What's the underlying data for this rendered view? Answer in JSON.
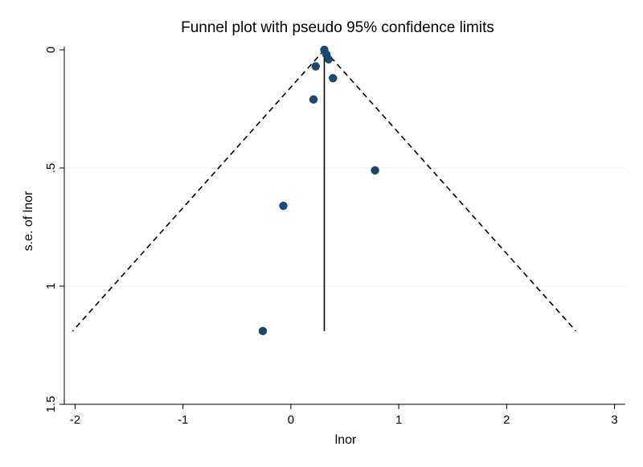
{
  "chart_data": {
    "type": "scatter",
    "title": "Funnel plot with pseudo 95% confidence limits",
    "xlabel": "lnor",
    "ylabel": "s.e. of lnor",
    "xlim": [
      -2.1,
      3.1
    ],
    "ylim": [
      0,
      1.5
    ],
    "y_inverted": true,
    "x_ticks": [
      -2,
      -1,
      0,
      1,
      2,
      3
    ],
    "x_tick_labels": [
      "-2",
      "-1",
      "0",
      "1",
      "2",
      "3"
    ],
    "y_ticks": [
      0,
      0.5,
      1,
      1.5
    ],
    "y_tick_labels": [
      "0",
      ".5",
      "1",
      "1.5"
    ],
    "grid": "horizontal",
    "legend": "none",
    "point_color": "#1a476f",
    "pooled_estimate": 0.31,
    "ci_max_se": 1.19,
    "points": [
      {
        "x": 0.31,
        "y": 0.0
      },
      {
        "x": 0.33,
        "y": 0.02
      },
      {
        "x": 0.35,
        "y": 0.04
      },
      {
        "x": 0.23,
        "y": 0.07
      },
      {
        "x": 0.39,
        "y": 0.12
      },
      {
        "x": 0.21,
        "y": 0.21
      },
      {
        "x": 0.78,
        "y": 0.51
      },
      {
        "x": -0.07,
        "y": 0.66
      },
      {
        "x": -0.26,
        "y": 1.19
      }
    ]
  }
}
